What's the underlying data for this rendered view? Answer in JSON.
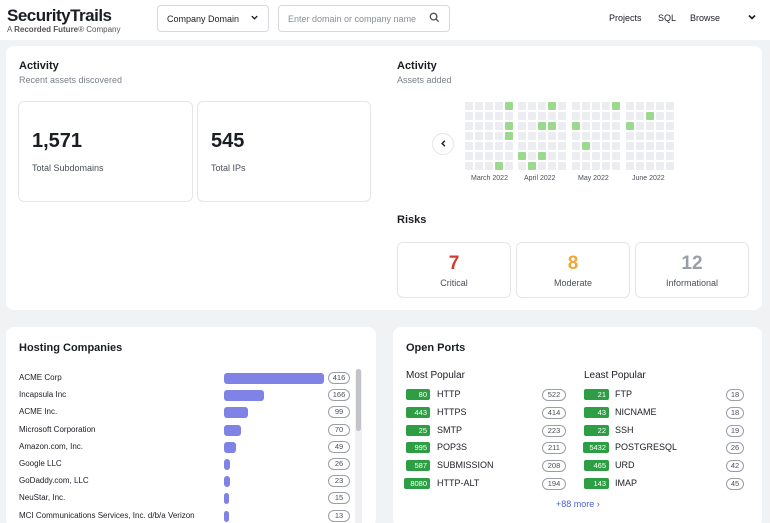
{
  "header": {
    "logo_main": "SecurityTrails",
    "logo_sub_prefix": "A ",
    "logo_sub_brand": "Recorded Future",
    "logo_sub_suffix": "® Company",
    "select_value": "Company Domain",
    "search_placeholder": "Enter domain or company name",
    "nav": [
      "Projects",
      "SQL",
      "Browse"
    ]
  },
  "activity_left": {
    "title": "Activity",
    "subtitle": "Recent assets discovered",
    "stats": [
      {
        "value": "1,571",
        "label": "Total Subdomains"
      },
      {
        "value": "545",
        "label": "Total IPs"
      }
    ]
  },
  "activity_right": {
    "title": "Activity",
    "subtitle": "Assets added",
    "months": [
      {
        "label": "March 2022",
        "highlights": [
          [
            0,
            4
          ],
          [
            2,
            4
          ],
          [
            3,
            4
          ],
          [
            6,
            3
          ]
        ]
      },
      {
        "label": "April 2022",
        "highlights": [
          [
            0,
            3
          ],
          [
            2,
            2
          ],
          [
            2,
            3
          ],
          [
            5,
            0
          ],
          [
            5,
            2
          ],
          [
            6,
            1
          ]
        ]
      },
      {
        "label": "May 2022",
        "highlights": [
          [
            0,
            4
          ],
          [
            2,
            0
          ],
          [
            4,
            1
          ]
        ]
      },
      {
        "label": "June 2022",
        "highlights": [
          [
            1,
            2
          ],
          [
            2,
            0
          ]
        ]
      }
    ],
    "colors": {
      "empty": "#ecedf0",
      "filled": "#9bd98f"
    }
  },
  "risks": {
    "title": "Risks",
    "items": [
      {
        "value": "7",
        "label": "Critical",
        "color": "#d63b2f"
      },
      {
        "value": "8",
        "label": "Moderate",
        "color": "#f0a63a"
      },
      {
        "value": "12",
        "label": "Informational",
        "color": "#9a9ea6"
      }
    ]
  },
  "hosting": {
    "title": "Hosting Companies",
    "max": 416,
    "bar_color": "#7f83e6",
    "items": [
      {
        "name": "ACME Corp",
        "count": 416
      },
      {
        "name": "Incapsula Inc",
        "count": 166
      },
      {
        "name": "ACME Inc.",
        "count": 99
      },
      {
        "name": "Microsoft Corporation",
        "count": 70
      },
      {
        "name": "Amazon.com, Inc.",
        "count": 49
      },
      {
        "name": "Google LLC",
        "count": 26
      },
      {
        "name": "GoDaddy.com, LLC",
        "count": 23
      },
      {
        "name": "NeuStar, Inc.",
        "count": 15
      },
      {
        "name": "MCI Communications Services, Inc. d/b/a Verizon",
        "count": 13
      }
    ]
  },
  "ports": {
    "title": "Open Ports",
    "badge_color": "#2e9e45",
    "most_popular_label": "Most Popular",
    "least_popular_label": "Least Popular",
    "most_popular": [
      {
        "port": "80",
        "name": "HTTP",
        "count": 522
      },
      {
        "port": "443",
        "name": "HTTPS",
        "count": 414
      },
      {
        "port": "25",
        "name": "SMTP",
        "count": 223
      },
      {
        "port": "995",
        "name": "POP3S",
        "count": 211
      },
      {
        "port": "587",
        "name": "SUBMISSION",
        "count": 208
      },
      {
        "port": "8080",
        "name": "HTTP-ALT",
        "count": 194
      }
    ],
    "least_popular": [
      {
        "port": "21",
        "name": "FTP",
        "count": 18
      },
      {
        "port": "43",
        "name": "NICNAME",
        "count": 18
      },
      {
        "port": "22",
        "name": "SSH",
        "count": 19
      },
      {
        "port": "5432",
        "name": "POSTGRESQL",
        "count": 26
      },
      {
        "port": "465",
        "name": "URD",
        "count": 42
      },
      {
        "port": "143",
        "name": "IMAP",
        "count": 45
      }
    ],
    "more_link": "+88 more"
  }
}
